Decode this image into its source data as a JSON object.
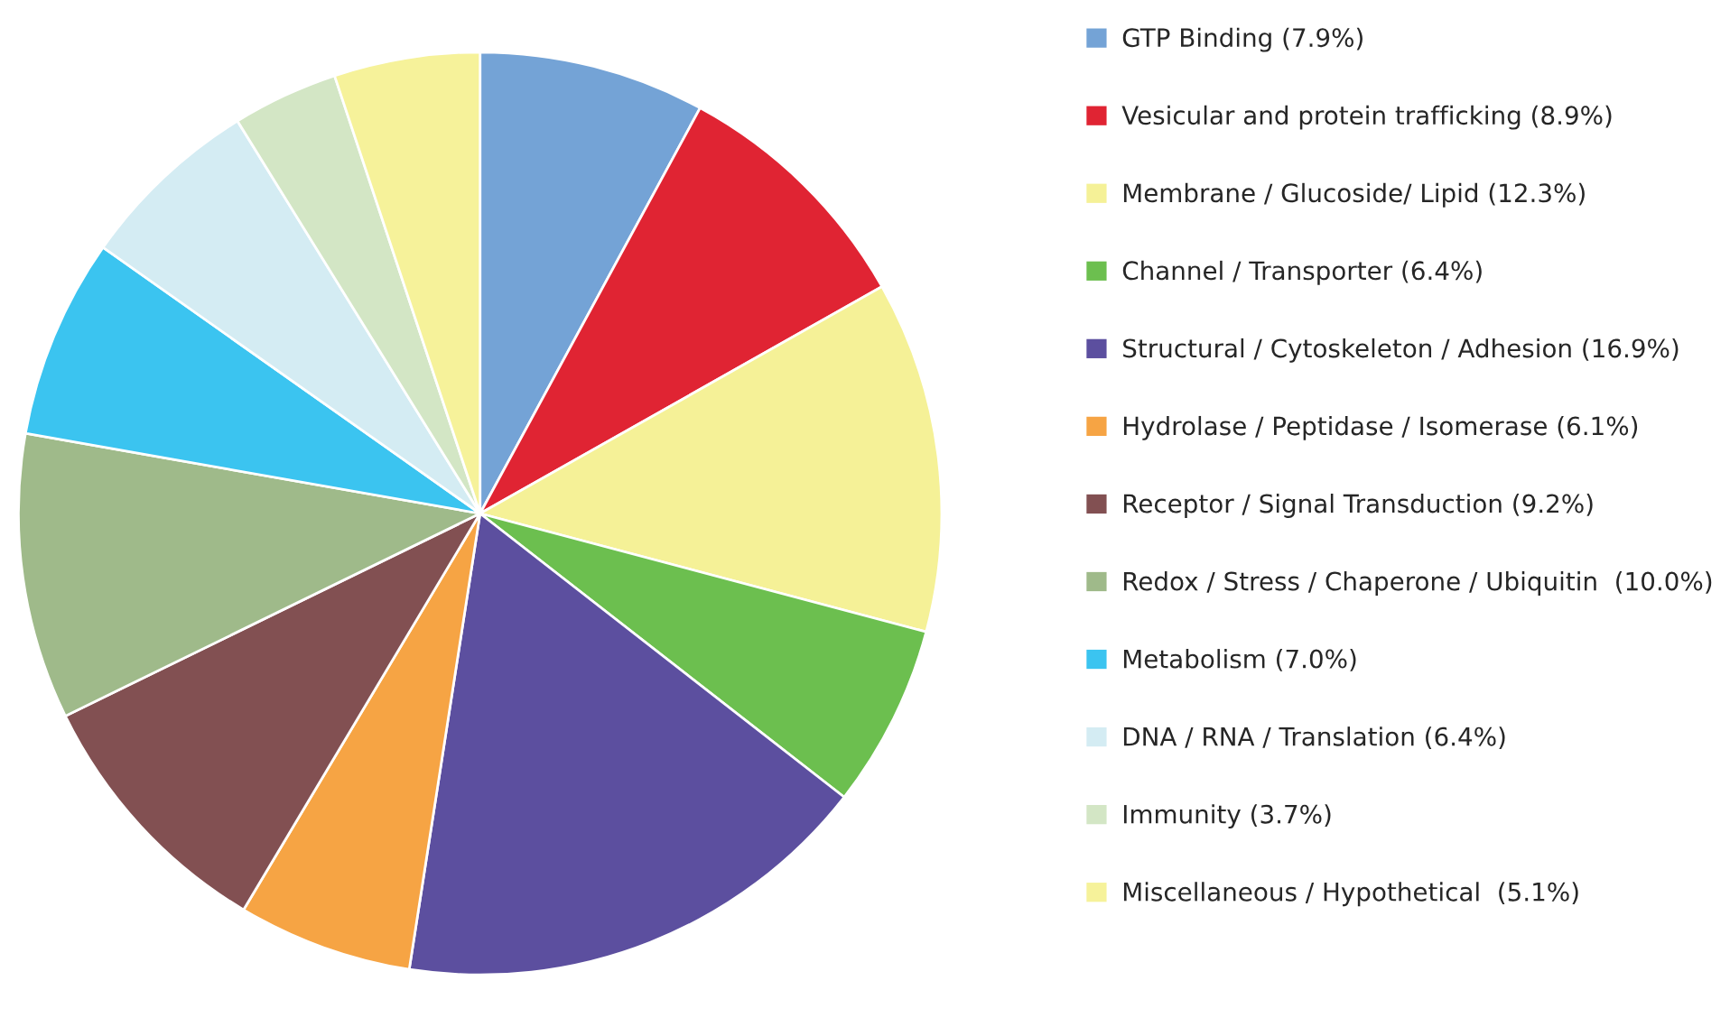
{
  "chart_data": {
    "type": "pie",
    "categories": [
      "GTP Binding (7.9%)",
      "Vesicular and protein trafficking (8.9%)",
      "Membrane / Glucoside/ Lipid (12.3%)",
      "Channel / Transporter (6.4%)",
      "Structural / Cytoskeleton / Adhesion (16.9%)",
      "Hydrolase / Peptidase / Isomerase (6.1%)",
      "Receptor / Signal Transduction (9.2%)",
      "Redox / Stress / Chaperone / Ubiquitin  (10.0%)",
      "Metabolism (7.0%)",
      "DNA / RNA / Translation (6.4%)",
      "Immunity (3.7%)",
      "Miscellaneous / Hypothetical  (5.1%)"
    ],
    "values": [
      7.9,
      8.9,
      12.3,
      6.4,
      16.9,
      6.1,
      9.2,
      10.0,
      7.0,
      6.4,
      3.7,
      5.1
    ],
    "colors": [
      "#74a3d6",
      "#e02433",
      "#f5f197",
      "#6cbf4f",
      "#5c4f9f",
      "#f6a444",
      "#825052",
      "#9fba8a",
      "#3bc4f0",
      "#d4ecf3",
      "#d3e6c5",
      "#f6f29a"
    ],
    "legend": "right"
  }
}
